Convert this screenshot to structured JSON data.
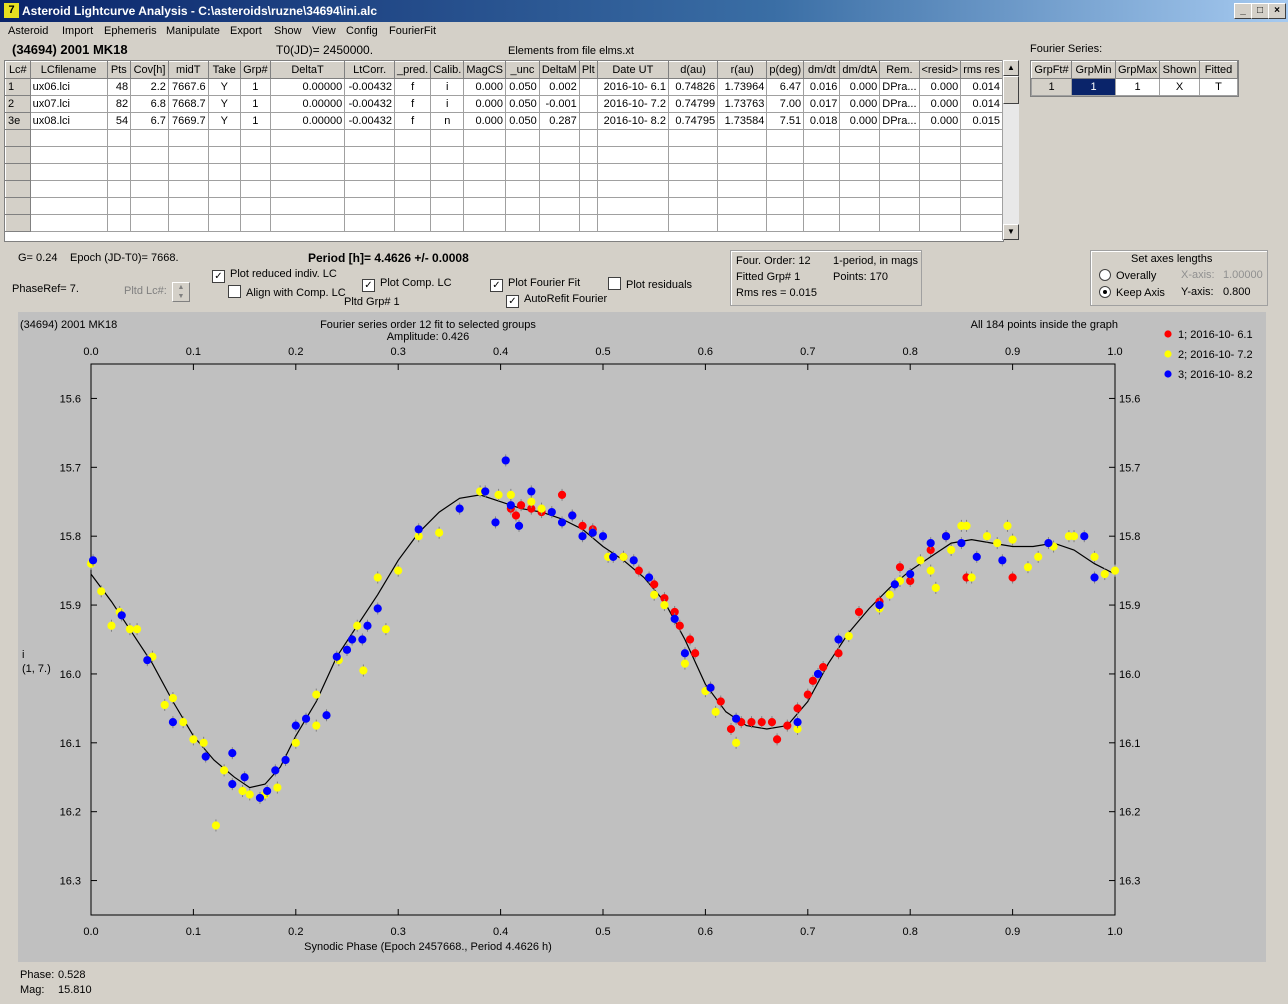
{
  "window": {
    "title": "Asteroid Lightcurve Analysis - C:\\asteroids\\ruzne\\34694\\ini.alc"
  },
  "menu": [
    "Asteroid",
    "Import",
    "Ephemeris",
    "Manipulate",
    "Export",
    "Show",
    "View",
    "Config",
    "FourierFit"
  ],
  "header": {
    "asteroid": "(34694) 2001 MK18",
    "t0": "T0(JD)= 2450000.",
    "elements": "Elements from file elms.xt"
  },
  "lc_table": {
    "columns": [
      "Lc#",
      "LCfilename",
      "Pts",
      "Cov[h]",
      "midT",
      "Take",
      "Grp#",
      "DeltaT",
      "LtCorr.",
      "_pred.",
      "Calib.",
      "MagCS",
      "_unc",
      "DeltaM",
      "Plt",
      "Date UT",
      "d(au)",
      "r(au)",
      "p(deg)",
      "dm/dt",
      "dm/dtA",
      "Rem.",
      "<resid>",
      "rms res"
    ],
    "rows": [
      [
        "1",
        "ux06.lci",
        "48",
        "2.2",
        "7667.6",
        "Y",
        "1",
        "0.00000",
        "-0.00432",
        "f",
        "i",
        "0.000",
        "0.050",
        "0.002",
        "",
        "2016-10- 6.1",
        "0.74826",
        "1.73964",
        "6.47",
        "0.016",
        "0.000",
        "DPra...",
        "0.000",
        "0.014"
      ],
      [
        "2",
        "ux07.lci",
        "82",
        "6.8",
        "7668.7",
        "Y",
        "1",
        "0.00000",
        "-0.00432",
        "f",
        "i",
        "0.000",
        "0.050",
        "-0.001",
        "",
        "2016-10- 7.2",
        "0.74799",
        "1.73763",
        "7.00",
        "0.017",
        "0.000",
        "DPra...",
        "0.000",
        "0.014"
      ],
      [
        "3e",
        "ux08.lci",
        "54",
        "6.7",
        "7669.7",
        "Y",
        "1",
        "0.00000",
        "-0.00432",
        "f",
        "n",
        "0.000",
        "0.050",
        "0.287",
        "",
        "2016-10- 8.2",
        "0.74795",
        "1.73584",
        "7.51",
        "0.018",
        "0.000",
        "DPra...",
        "0.000",
        "0.015"
      ]
    ]
  },
  "fourier_series": {
    "label": "Fourier Series:",
    "columns": [
      "GrpFt#",
      "GrpMin",
      "GrpMax",
      "Shown",
      "Fitted"
    ],
    "row": [
      "1",
      "1",
      "1",
      "X",
      "T"
    ]
  },
  "controls": {
    "g": "G= 0.24",
    "epoch": "Epoch (JD-T0)= 7668.",
    "period": "Period [h]= 4.4626 +/- 0.0008",
    "phaseref": "PhaseRef= 7.",
    "pltd_lc": "Pltd Lc#:",
    "pltd_grp": "Pltd Grp#  1",
    "plot_reduced": "Plot reduced indiv. LC",
    "align_comp": "Align with Comp. LC",
    "plot_comp": "Plot Comp. LC",
    "plot_fourier": "Plot Fourier Fit",
    "autorefit": "AutoRefit Fourier",
    "plot_residuals": "Plot residuals"
  },
  "fourier_info": {
    "order": "Four. Order: 12",
    "period_mags": "1-period, in mags",
    "fitted": "Fitted Grp# 1",
    "points": "Points: 170",
    "rms": "Rms res     = 0.015"
  },
  "axes_panel": {
    "title": "Set axes lengths",
    "overally": "Overally",
    "keep_axis": "Keep Axis",
    "xaxis_label": "X-axis:",
    "xaxis_val": "1.00000",
    "yaxis_label": "Y-axis:",
    "yaxis_val": "0.800"
  },
  "status": {
    "phase_label": "Phase:",
    "phase_val": "0.528",
    "mag_label": "Mag:",
    "mag_val": "15.810"
  },
  "colors": {
    "g1": "#ff0000",
    "g2": "#ffff00",
    "g3": "#0000ff",
    "plot_bg": "#c0c0c0"
  },
  "chart_data": {
    "type": "scatter",
    "title": "Fourier series order 12 fit to selected groups",
    "subtitle": "Amplitude: 0.426",
    "corner_left": "(34694) 2001 MK18",
    "corner_right": "All 184 points inside the graph",
    "xlabel": "Synodic Phase (Epoch 2457668., Period 4.4626 h)",
    "ylabel": "i",
    "ylabel2": "(1, 7.)",
    "xlim": [
      0,
      1
    ],
    "ylim": [
      16.35,
      15.55
    ],
    "y_inverted": true,
    "xticks": [
      "0.0",
      "0.1",
      "0.2",
      "0.3",
      "0.4",
      "0.5",
      "0.6",
      "0.7",
      "0.8",
      "0.9",
      "1.0"
    ],
    "yticks": [
      "15.6",
      "15.7",
      "15.8",
      "15.9",
      "16.0",
      "16.1",
      "16.2",
      "16.3"
    ],
    "legend": [
      "1; 2016-10- 6.1",
      "2; 2016-10- 7.2",
      "3; 2016-10- 8.2"
    ],
    "legend_position": "top-right",
    "series": [
      {
        "name": "1; 2016-10- 6.1",
        "points": [
          [
            0.41,
            15.76
          ],
          [
            0.415,
            15.77
          ],
          [
            0.42,
            15.755
          ],
          [
            0.43,
            15.76
          ],
          [
            0.44,
            15.765
          ],
          [
            0.46,
            15.74
          ],
          [
            0.47,
            15.77
          ],
          [
            0.48,
            15.785
          ],
          [
            0.49,
            15.79
          ],
          [
            0.52,
            15.83
          ],
          [
            0.535,
            15.85
          ],
          [
            0.55,
            15.87
          ],
          [
            0.56,
            15.89
          ],
          [
            0.57,
            15.91
          ],
          [
            0.575,
            15.93
          ],
          [
            0.585,
            15.95
          ],
          [
            0.59,
            15.97
          ],
          [
            0.605,
            16.02
          ],
          [
            0.615,
            16.04
          ],
          [
            0.625,
            16.08
          ],
          [
            0.635,
            16.07
          ],
          [
            0.645,
            16.07
          ],
          [
            0.655,
            16.07
          ],
          [
            0.665,
            16.07
          ],
          [
            0.67,
            16.095
          ],
          [
            0.68,
            16.075
          ],
          [
            0.69,
            16.05
          ],
          [
            0.7,
            16.03
          ],
          [
            0.705,
            16.01
          ],
          [
            0.715,
            15.99
          ],
          [
            0.73,
            15.97
          ],
          [
            0.75,
            15.91
          ],
          [
            0.77,
            15.895
          ],
          [
            0.79,
            15.845
          ],
          [
            0.8,
            15.865
          ],
          [
            0.82,
            15.82
          ],
          [
            0.835,
            15.8
          ],
          [
            0.855,
            15.86
          ],
          [
            0.9,
            15.86
          ]
        ]
      },
      {
        "name": "2; 2016-10- 7.2",
        "points": [
          [
            0.0,
            15.84
          ],
          [
            0.01,
            15.88
          ],
          [
            0.02,
            15.93
          ],
          [
            0.028,
            15.91
          ],
          [
            0.038,
            15.935
          ],
          [
            0.045,
            15.935
          ],
          [
            0.06,
            15.975
          ],
          [
            0.072,
            16.045
          ],
          [
            0.08,
            16.035
          ],
          [
            0.09,
            16.07
          ],
          [
            0.1,
            16.095
          ],
          [
            0.11,
            16.1
          ],
          [
            0.122,
            16.22
          ],
          [
            0.13,
            16.14
          ],
          [
            0.148,
            16.17
          ],
          [
            0.155,
            16.175
          ],
          [
            0.17,
            16.175
          ],
          [
            0.182,
            16.165
          ],
          [
            0.2,
            16.1
          ],
          [
            0.22,
            16.075
          ],
          [
            0.22,
            16.03
          ],
          [
            0.242,
            15.98
          ],
          [
            0.26,
            15.93
          ],
          [
            0.266,
            15.995
          ],
          [
            0.28,
            15.86
          ],
          [
            0.288,
            15.935
          ],
          [
            0.3,
            15.85
          ],
          [
            0.32,
            15.8
          ],
          [
            0.34,
            15.795
          ],
          [
            0.38,
            15.735
          ],
          [
            0.398,
            15.74
          ],
          [
            0.41,
            15.74
          ],
          [
            0.43,
            15.75
          ],
          [
            0.44,
            15.76
          ],
          [
            0.49,
            15.795
          ],
          [
            0.505,
            15.83
          ],
          [
            0.52,
            15.83
          ],
          [
            0.55,
            15.885
          ],
          [
            0.56,
            15.9
          ],
          [
            0.58,
            15.985
          ],
          [
            0.6,
            16.025
          ],
          [
            0.61,
            16.055
          ],
          [
            0.63,
            16.1
          ],
          [
            0.69,
            16.08
          ],
          [
            0.74,
            15.945
          ],
          [
            0.77,
            15.905
          ],
          [
            0.78,
            15.885
          ],
          [
            0.79,
            15.865
          ],
          [
            0.81,
            15.835
          ],
          [
            0.82,
            15.85
          ],
          [
            0.825,
            15.875
          ],
          [
            0.84,
            15.82
          ],
          [
            0.85,
            15.785
          ],
          [
            0.855,
            15.785
          ],
          [
            0.86,
            15.86
          ],
          [
            0.875,
            15.8
          ],
          [
            0.885,
            15.81
          ],
          [
            0.895,
            15.785
          ],
          [
            0.9,
            15.805
          ],
          [
            0.915,
            15.845
          ],
          [
            0.925,
            15.83
          ],
          [
            0.94,
            15.815
          ],
          [
            0.955,
            15.8
          ],
          [
            0.96,
            15.8
          ],
          [
            0.98,
            15.83
          ],
          [
            0.99,
            15.855
          ],
          [
            1.0,
            15.85
          ]
        ]
      },
      {
        "name": "3; 2016-10- 8.2",
        "points": [
          [
            0.002,
            15.835
          ],
          [
            0.03,
            15.915
          ],
          [
            0.055,
            15.98
          ],
          [
            0.08,
            16.07
          ],
          [
            0.112,
            16.12
          ],
          [
            0.138,
            16.115
          ],
          [
            0.138,
            16.16
          ],
          [
            0.15,
            16.15
          ],
          [
            0.165,
            16.18
          ],
          [
            0.172,
            16.17
          ],
          [
            0.18,
            16.14
          ],
          [
            0.19,
            16.125
          ],
          [
            0.2,
            16.075
          ],
          [
            0.21,
            16.065
          ],
          [
            0.23,
            16.06
          ],
          [
            0.24,
            15.975
          ],
          [
            0.25,
            15.965
          ],
          [
            0.255,
            15.95
          ],
          [
            0.265,
            15.95
          ],
          [
            0.27,
            15.93
          ],
          [
            0.28,
            15.905
          ],
          [
            0.32,
            15.79
          ],
          [
            0.36,
            15.76
          ],
          [
            0.385,
            15.735
          ],
          [
            0.395,
            15.78
          ],
          [
            0.405,
            15.69
          ],
          [
            0.41,
            15.755
          ],
          [
            0.418,
            15.785
          ],
          [
            0.43,
            15.735
          ],
          [
            0.45,
            15.765
          ],
          [
            0.46,
            15.78
          ],
          [
            0.47,
            15.77
          ],
          [
            0.48,
            15.8
          ],
          [
            0.49,
            15.795
          ],
          [
            0.5,
            15.8
          ],
          [
            0.51,
            15.83
          ],
          [
            0.53,
            15.835
          ],
          [
            0.545,
            15.86
          ],
          [
            0.57,
            15.92
          ],
          [
            0.58,
            15.97
          ],
          [
            0.605,
            16.02
          ],
          [
            0.63,
            16.065
          ],
          [
            0.69,
            16.07
          ],
          [
            0.71,
            16.0
          ],
          [
            0.73,
            15.95
          ],
          [
            0.77,
            15.9
          ],
          [
            0.785,
            15.87
          ],
          [
            0.8,
            15.855
          ],
          [
            0.82,
            15.81
          ],
          [
            0.835,
            15.8
          ],
          [
            0.85,
            15.81
          ],
          [
            0.865,
            15.83
          ],
          [
            0.89,
            15.835
          ],
          [
            0.935,
            15.81
          ],
          [
            0.97,
            15.8
          ],
          [
            0.98,
            15.86
          ]
        ]
      }
    ],
    "fit_curve": [
      [
        0.0,
        15.855
      ],
      [
        0.02,
        15.895
      ],
      [
        0.04,
        15.94
      ],
      [
        0.06,
        15.985
      ],
      [
        0.08,
        16.04
      ],
      [
        0.1,
        16.09
      ],
      [
        0.12,
        16.125
      ],
      [
        0.14,
        16.15
      ],
      [
        0.155,
        16.165
      ],
      [
        0.17,
        16.16
      ],
      [
        0.185,
        16.135
      ],
      [
        0.2,
        16.09
      ],
      [
        0.22,
        16.04
      ],
      [
        0.24,
        15.975
      ],
      [
        0.26,
        15.93
      ],
      [
        0.28,
        15.885
      ],
      [
        0.3,
        15.835
      ],
      [
        0.32,
        15.795
      ],
      [
        0.34,
        15.765
      ],
      [
        0.36,
        15.745
      ],
      [
        0.38,
        15.74
      ],
      [
        0.4,
        15.75
      ],
      [
        0.42,
        15.76
      ],
      [
        0.44,
        15.765
      ],
      [
        0.46,
        15.775
      ],
      [
        0.48,
        15.79
      ],
      [
        0.5,
        15.815
      ],
      [
        0.52,
        15.835
      ],
      [
        0.54,
        15.86
      ],
      [
        0.56,
        15.895
      ],
      [
        0.58,
        15.95
      ],
      [
        0.6,
        16.015
      ],
      [
        0.62,
        16.055
      ],
      [
        0.64,
        16.075
      ],
      [
        0.66,
        16.08
      ],
      [
        0.68,
        16.075
      ],
      [
        0.7,
        16.04
      ],
      [
        0.72,
        15.985
      ],
      [
        0.74,
        15.94
      ],
      [
        0.76,
        15.905
      ],
      [
        0.78,
        15.875
      ],
      [
        0.8,
        15.85
      ],
      [
        0.82,
        15.83
      ],
      [
        0.84,
        15.81
      ],
      [
        0.86,
        15.805
      ],
      [
        0.88,
        15.81
      ],
      [
        0.9,
        15.815
      ],
      [
        0.92,
        15.815
      ],
      [
        0.94,
        15.81
      ],
      [
        0.96,
        15.82
      ],
      [
        0.98,
        15.84
      ],
      [
        1.0,
        15.855
      ]
    ]
  }
}
